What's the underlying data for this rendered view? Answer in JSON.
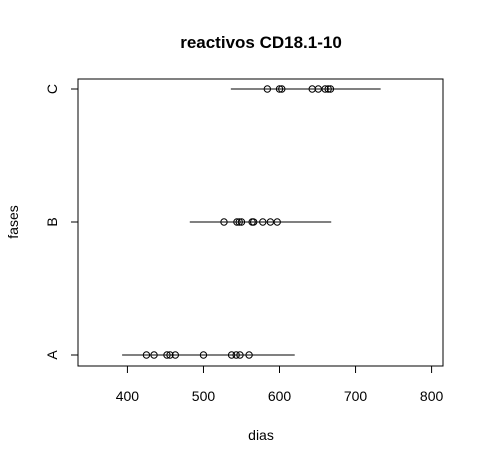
{
  "chart_data": {
    "type": "scatter",
    "title": "reactivos CD18.1-10",
    "xlabel": "dias",
    "ylabel": "fases",
    "xlim": [
      335,
      815
    ],
    "x_ticks": [
      400,
      500,
      600,
      700,
      800
    ],
    "categories": [
      "A",
      "B",
      "C"
    ],
    "grid": false,
    "groups": [
      {
        "category": "A",
        "points": [
          425,
          435,
          452,
          456,
          463,
          500,
          537,
          543,
          548,
          560
        ],
        "interval": [
          393,
          620
        ]
      },
      {
        "category": "B",
        "points": [
          527,
          544,
          547,
          550,
          564,
          566,
          578,
          588,
          597
        ],
        "interval": [
          482,
          668
        ]
      },
      {
        "category": "C",
        "points": [
          584,
          600,
          603,
          643,
          651,
          660,
          664,
          667
        ],
        "interval": [
          536,
          733
        ]
      }
    ]
  }
}
